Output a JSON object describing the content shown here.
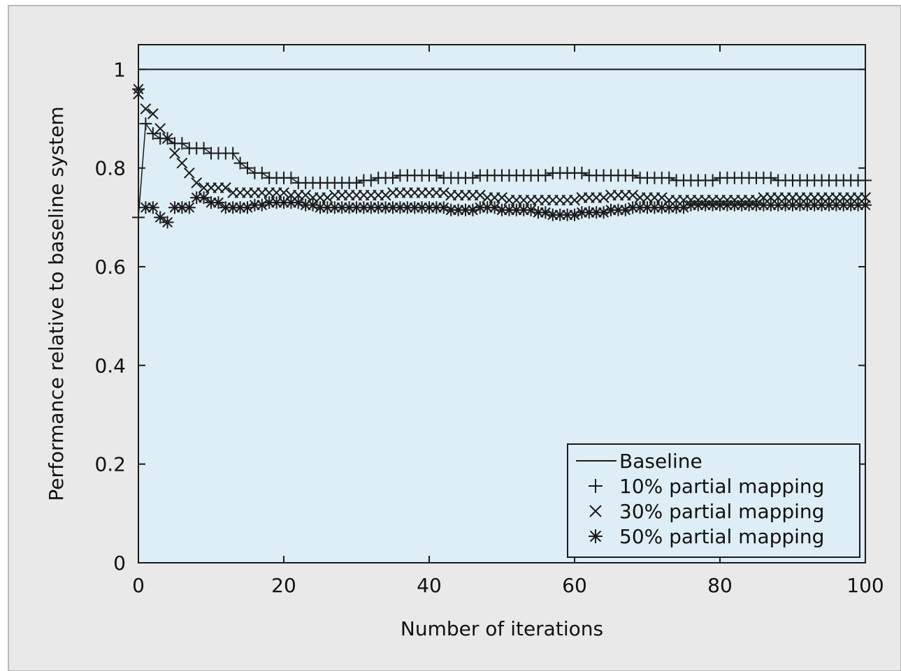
{
  "chart_data": {
    "type": "scatter",
    "title": "",
    "xlabel": "Number of iterations",
    "ylabel": "Performance relative to baseline system",
    "xlim": [
      0,
      100
    ],
    "ylim": [
      0,
      1.05
    ],
    "x_ticks": [
      0,
      20,
      40,
      60,
      80,
      100
    ],
    "y_ticks": [
      0,
      0.2,
      0.4,
      0.6,
      0.8,
      1
    ],
    "x_tick_labels": [
      "0",
      "20",
      "40",
      "60",
      "80",
      "100"
    ],
    "y_tick_labels": [
      "0",
      "0.2",
      "0.4",
      "0.6",
      "0.8",
      "1"
    ],
    "grid": false,
    "legend_position": "bottom-right",
    "colors": {
      "outer_background": "#e9e9e9",
      "plot_background": "#deeef6",
      "series": "#1a1a1a"
    },
    "series": [
      {
        "name": "Baseline",
        "style": "line",
        "points": [
          [
            0,
            1.0
          ],
          [
            100,
            1.0
          ]
        ]
      },
      {
        "name": "10% partial mapping",
        "style": "plus",
        "points": [
          [
            0,
            0.7
          ],
          [
            1,
            0.89
          ],
          [
            2,
            0.87
          ],
          [
            3,
            0.86
          ],
          [
            4,
            0.86
          ],
          [
            5,
            0.85
          ],
          [
            6,
            0.85
          ],
          [
            7,
            0.84
          ],
          [
            8,
            0.84
          ],
          [
            9,
            0.84
          ],
          [
            10,
            0.83
          ],
          [
            11,
            0.83
          ],
          [
            12,
            0.83
          ],
          [
            13,
            0.83
          ],
          [
            14,
            0.81
          ],
          [
            15,
            0.8
          ],
          [
            16,
            0.79
          ],
          [
            17,
            0.79
          ],
          [
            18,
            0.78
          ],
          [
            19,
            0.78
          ],
          [
            20,
            0.78
          ],
          [
            21,
            0.78
          ],
          [
            22,
            0.77
          ],
          [
            23,
            0.77
          ],
          [
            24,
            0.77
          ],
          [
            25,
            0.77
          ],
          [
            26,
            0.77
          ],
          [
            27,
            0.77
          ],
          [
            28,
            0.77
          ],
          [
            29,
            0.77
          ],
          [
            30,
            0.77
          ],
          [
            31,
            0.775
          ],
          [
            32,
            0.775
          ],
          [
            33,
            0.78
          ],
          [
            34,
            0.78
          ],
          [
            35,
            0.78
          ],
          [
            36,
            0.785
          ],
          [
            37,
            0.785
          ],
          [
            38,
            0.785
          ],
          [
            39,
            0.785
          ],
          [
            40,
            0.785
          ],
          [
            41,
            0.785
          ],
          [
            42,
            0.78
          ],
          [
            43,
            0.78
          ],
          [
            44,
            0.78
          ],
          [
            45,
            0.78
          ],
          [
            46,
            0.78
          ],
          [
            47,
            0.785
          ],
          [
            48,
            0.785
          ],
          [
            49,
            0.785
          ],
          [
            50,
            0.785
          ],
          [
            51,
            0.785
          ],
          [
            52,
            0.785
          ],
          [
            53,
            0.785
          ],
          [
            54,
            0.785
          ],
          [
            55,
            0.785
          ],
          [
            56,
            0.785
          ],
          [
            57,
            0.79
          ],
          [
            58,
            0.79
          ],
          [
            59,
            0.79
          ],
          [
            60,
            0.79
          ],
          [
            61,
            0.79
          ],
          [
            62,
            0.785
          ],
          [
            63,
            0.785
          ],
          [
            64,
            0.785
          ],
          [
            65,
            0.785
          ],
          [
            66,
            0.785
          ],
          [
            67,
            0.785
          ],
          [
            68,
            0.785
          ],
          [
            69,
            0.78
          ],
          [
            70,
            0.78
          ],
          [
            71,
            0.78
          ],
          [
            72,
            0.78
          ],
          [
            73,
            0.78
          ],
          [
            74,
            0.775
          ],
          [
            75,
            0.775
          ],
          [
            76,
            0.775
          ],
          [
            77,
            0.775
          ],
          [
            78,
            0.775
          ],
          [
            79,
            0.775
          ],
          [
            80,
            0.78
          ],
          [
            81,
            0.78
          ],
          [
            82,
            0.78
          ],
          [
            83,
            0.78
          ],
          [
            84,
            0.78
          ],
          [
            85,
            0.78
          ],
          [
            86,
            0.78
          ],
          [
            87,
            0.78
          ],
          [
            88,
            0.775
          ],
          [
            89,
            0.775
          ],
          [
            90,
            0.775
          ],
          [
            91,
            0.775
          ],
          [
            92,
            0.775
          ],
          [
            93,
            0.775
          ],
          [
            94,
            0.775
          ],
          [
            95,
            0.775
          ],
          [
            96,
            0.775
          ],
          [
            97,
            0.775
          ],
          [
            98,
            0.775
          ],
          [
            99,
            0.775
          ],
          [
            100,
            0.775
          ]
        ]
      },
      {
        "name": "30% partial mapping",
        "style": "cross",
        "points": [
          [
            0,
            0.95
          ],
          [
            1,
            0.92
          ],
          [
            2,
            0.91
          ],
          [
            3,
            0.88
          ],
          [
            4,
            0.86
          ],
          [
            5,
            0.83
          ],
          [
            6,
            0.81
          ],
          [
            7,
            0.79
          ],
          [
            8,
            0.77
          ],
          [
            9,
            0.76
          ],
          [
            10,
            0.76
          ],
          [
            11,
            0.76
          ],
          [
            12,
            0.76
          ],
          [
            13,
            0.75
          ],
          [
            14,
            0.75
          ],
          [
            15,
            0.75
          ],
          [
            16,
            0.75
          ],
          [
            17,
            0.75
          ],
          [
            18,
            0.75
          ],
          [
            19,
            0.75
          ],
          [
            20,
            0.75
          ],
          [
            21,
            0.745
          ],
          [
            22,
            0.745
          ],
          [
            23,
            0.745
          ],
          [
            24,
            0.74
          ],
          [
            25,
            0.74
          ],
          [
            26,
            0.74
          ],
          [
            27,
            0.745
          ],
          [
            28,
            0.745
          ],
          [
            29,
            0.745
          ],
          [
            30,
            0.745
          ],
          [
            31,
            0.745
          ],
          [
            32,
            0.745
          ],
          [
            33,
            0.745
          ],
          [
            34,
            0.745
          ],
          [
            35,
            0.75
          ],
          [
            36,
            0.75
          ],
          [
            37,
            0.75
          ],
          [
            38,
            0.75
          ],
          [
            39,
            0.75
          ],
          [
            40,
            0.75
          ],
          [
            41,
            0.75
          ],
          [
            42,
            0.75
          ],
          [
            43,
            0.745
          ],
          [
            44,
            0.745
          ],
          [
            45,
            0.745
          ],
          [
            46,
            0.745
          ],
          [
            47,
            0.745
          ],
          [
            48,
            0.74
          ],
          [
            49,
            0.74
          ],
          [
            50,
            0.74
          ],
          [
            51,
            0.735
          ],
          [
            52,
            0.735
          ],
          [
            53,
            0.735
          ],
          [
            54,
            0.735
          ],
          [
            55,
            0.735
          ],
          [
            56,
            0.735
          ],
          [
            57,
            0.735
          ],
          [
            58,
            0.735
          ],
          [
            59,
            0.735
          ],
          [
            60,
            0.735
          ],
          [
            61,
            0.74
          ],
          [
            62,
            0.74
          ],
          [
            63,
            0.74
          ],
          [
            64,
            0.74
          ],
          [
            65,
            0.745
          ],
          [
            66,
            0.745
          ],
          [
            67,
            0.745
          ],
          [
            68,
            0.745
          ],
          [
            69,
            0.74
          ],
          [
            70,
            0.74
          ],
          [
            71,
            0.74
          ],
          [
            72,
            0.74
          ],
          [
            73,
            0.735
          ],
          [
            74,
            0.735
          ],
          [
            75,
            0.735
          ],
          [
            76,
            0.735
          ],
          [
            77,
            0.735
          ],
          [
            78,
            0.735
          ],
          [
            79,
            0.735
          ],
          [
            80,
            0.735
          ],
          [
            81,
            0.735
          ],
          [
            82,
            0.735
          ],
          [
            83,
            0.735
          ],
          [
            84,
            0.735
          ],
          [
            85,
            0.735
          ],
          [
            86,
            0.74
          ],
          [
            87,
            0.74
          ],
          [
            88,
            0.74
          ],
          [
            89,
            0.74
          ],
          [
            90,
            0.74
          ],
          [
            91,
            0.74
          ],
          [
            92,
            0.74
          ],
          [
            93,
            0.74
          ],
          [
            94,
            0.74
          ],
          [
            95,
            0.74
          ],
          [
            96,
            0.74
          ],
          [
            97,
            0.74
          ],
          [
            98,
            0.74
          ],
          [
            99,
            0.74
          ],
          [
            100,
            0.74
          ]
        ]
      },
      {
        "name": "50% partial mapping",
        "style": "star",
        "points": [
          [
            0,
            0.96
          ],
          [
            1,
            0.72
          ],
          [
            2,
            0.72
          ],
          [
            3,
            0.7
          ],
          [
            4,
            0.69
          ],
          [
            5,
            0.72
          ],
          [
            6,
            0.72
          ],
          [
            7,
            0.72
          ],
          [
            8,
            0.74
          ],
          [
            9,
            0.74
          ],
          [
            10,
            0.73
          ],
          [
            11,
            0.73
          ],
          [
            12,
            0.72
          ],
          [
            13,
            0.72
          ],
          [
            14,
            0.72
          ],
          [
            15,
            0.72
          ],
          [
            16,
            0.725
          ],
          [
            17,
            0.725
          ],
          [
            18,
            0.73
          ],
          [
            19,
            0.73
          ],
          [
            20,
            0.73
          ],
          [
            21,
            0.73
          ],
          [
            22,
            0.73
          ],
          [
            23,
            0.725
          ],
          [
            24,
            0.725
          ],
          [
            25,
            0.72
          ],
          [
            26,
            0.72
          ],
          [
            27,
            0.72
          ],
          [
            28,
            0.72
          ],
          [
            29,
            0.72
          ],
          [
            30,
            0.72
          ],
          [
            31,
            0.72
          ],
          [
            32,
            0.72
          ],
          [
            33,
            0.72
          ],
          [
            34,
            0.72
          ],
          [
            35,
            0.72
          ],
          [
            36,
            0.72
          ],
          [
            37,
            0.72
          ],
          [
            38,
            0.72
          ],
          [
            39,
            0.72
          ],
          [
            40,
            0.72
          ],
          [
            41,
            0.72
          ],
          [
            42,
            0.72
          ],
          [
            43,
            0.715
          ],
          [
            44,
            0.715
          ],
          [
            45,
            0.715
          ],
          [
            46,
            0.715
          ],
          [
            47,
            0.72
          ],
          [
            48,
            0.72
          ],
          [
            49,
            0.72
          ],
          [
            50,
            0.715
          ],
          [
            51,
            0.715
          ],
          [
            52,
            0.715
          ],
          [
            53,
            0.715
          ],
          [
            54,
            0.715
          ],
          [
            55,
            0.71
          ],
          [
            56,
            0.71
          ],
          [
            57,
            0.705
          ],
          [
            58,
            0.705
          ],
          [
            59,
            0.705
          ],
          [
            60,
            0.705
          ],
          [
            61,
            0.71
          ],
          [
            62,
            0.71
          ],
          [
            63,
            0.71
          ],
          [
            64,
            0.71
          ],
          [
            65,
            0.715
          ],
          [
            66,
            0.715
          ],
          [
            67,
            0.715
          ],
          [
            68,
            0.72
          ],
          [
            69,
            0.72
          ],
          [
            70,
            0.72
          ],
          [
            71,
            0.72
          ],
          [
            72,
            0.72
          ],
          [
            73,
            0.72
          ],
          [
            74,
            0.72
          ],
          [
            75,
            0.72
          ],
          [
            76,
            0.725
          ],
          [
            77,
            0.725
          ],
          [
            78,
            0.725
          ],
          [
            79,
            0.725
          ],
          [
            80,
            0.725
          ],
          [
            81,
            0.725
          ],
          [
            82,
            0.725
          ],
          [
            83,
            0.725
          ],
          [
            84,
            0.725
          ],
          [
            85,
            0.725
          ],
          [
            86,
            0.725
          ],
          [
            87,
            0.725
          ],
          [
            88,
            0.725
          ],
          [
            89,
            0.725
          ],
          [
            90,
            0.725
          ],
          [
            91,
            0.725
          ],
          [
            92,
            0.725
          ],
          [
            93,
            0.725
          ],
          [
            94,
            0.725
          ],
          [
            95,
            0.725
          ],
          [
            96,
            0.725
          ],
          [
            97,
            0.725
          ],
          [
            98,
            0.725
          ],
          [
            99,
            0.725
          ],
          [
            100,
            0.725
          ]
        ]
      }
    ]
  }
}
